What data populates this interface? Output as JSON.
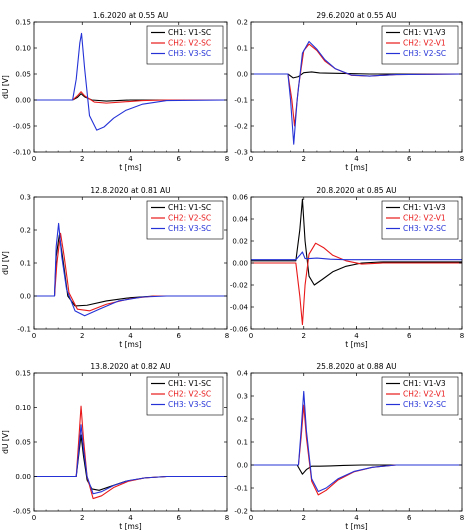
{
  "colors": {
    "CH1": "#000000",
    "CH2": "#e8191a",
    "CH3": "#2432d6"
  },
  "chart_data": [
    {
      "type": "line",
      "title": "1.6.2020 at 0.55 AU",
      "xlabel": "t [ms]",
      "ylabel": "dU [V]",
      "xlim": [
        0,
        8
      ],
      "ylim": [
        -0.1,
        0.15
      ],
      "xticks": [
        "0",
        "2",
        "4",
        "6",
        "8"
      ],
      "yticks": [
        "-0.10",
        "-0.05",
        "0.00",
        "0.05",
        "0.10",
        "0.15"
      ],
      "legend_position": "top-right",
      "legend": [
        "CH1: V1-SC",
        "CH2: V2-SC",
        "CH3: V3-SC"
      ],
      "series": [
        {
          "name": "CH1: V1-SC",
          "x": [
            0,
            1.6,
            1.8,
            1.95,
            2.1,
            2.4,
            3.0,
            4.0,
            8.0
          ],
          "y": [
            0,
            0,
            0.005,
            0.012,
            0.006,
            0,
            -0.002,
            0,
            0
          ]
        },
        {
          "name": "CH2: V2-SC",
          "x": [
            0,
            1.6,
            1.8,
            1.95,
            2.1,
            2.5,
            3.0,
            3.6,
            4.5,
            5.5,
            8.0
          ],
          "y": [
            0,
            0,
            0.008,
            0.016,
            0.008,
            -0.004,
            -0.006,
            -0.004,
            -0.001,
            0,
            0
          ]
        },
        {
          "name": "CH3: V3-SC",
          "x": [
            0,
            1.6,
            1.75,
            1.9,
            1.97,
            2.1,
            2.3,
            2.6,
            2.9,
            3.3,
            3.8,
            4.5,
            5.5,
            8.0
          ],
          "y": [
            0,
            0,
            0.04,
            0.11,
            0.128,
            0.06,
            -0.03,
            -0.058,
            -0.052,
            -0.035,
            -0.02,
            -0.008,
            -0.001,
            0
          ]
        }
      ]
    },
    {
      "type": "line",
      "title": "29.6.2020 at 0.55 AU",
      "xlabel": "t [ms]",
      "ylabel": "",
      "xlim": [
        0,
        8
      ],
      "ylim": [
        -0.3,
        0.2
      ],
      "xticks": [
        "0",
        "2",
        "4",
        "6",
        "8"
      ],
      "yticks": [
        "-0.3",
        "-0.2",
        "-0.1",
        "0.0",
        "0.1",
        "0.2"
      ],
      "legend_position": "top-right",
      "legend": [
        "CH1: V1-V3",
        "CH2: V2-V1",
        "CH3: V2-SC"
      ],
      "series": [
        {
          "name": "CH1: V1-V3",
          "x": [
            0,
            1.4,
            1.6,
            1.8,
            2.0,
            2.3,
            2.6,
            3.0,
            3.5,
            4.5,
            8.0
          ],
          "y": [
            0,
            0,
            -0.015,
            -0.01,
            0.005,
            0.008,
            0.004,
            0.003,
            0.002,
            0,
            0
          ]
        },
        {
          "name": "CH2: V2-V1",
          "x": [
            0,
            1.4,
            1.55,
            1.65,
            1.8,
            2.0,
            2.2,
            2.5,
            2.8,
            3.2,
            3.8,
            4.5,
            5.5,
            8.0
          ],
          "y": [
            0,
            0,
            -0.1,
            -0.2,
            -0.05,
            0.09,
            0.115,
            0.09,
            0.05,
            0.02,
            -0.005,
            -0.008,
            -0.002,
            0
          ]
        },
        {
          "name": "CH3: V2-SC",
          "x": [
            0,
            1.4,
            1.5,
            1.62,
            1.75,
            1.95,
            2.2,
            2.5,
            2.8,
            3.2,
            3.8,
            4.5,
            5.5,
            8.0
          ],
          "y": [
            0,
            0,
            -0.1,
            -0.27,
            -0.1,
            0.08,
            0.125,
            0.095,
            0.055,
            0.02,
            -0.004,
            -0.008,
            -0.002,
            0
          ]
        }
      ]
    },
    {
      "type": "line",
      "title": "12.8.2020 at 0.81 AU",
      "xlabel": "t [ms]",
      "ylabel": "dU [V]",
      "xlim": [
        0,
        8
      ],
      "ylim": [
        -0.1,
        0.3
      ],
      "xticks": [
        "0",
        "2",
        "4",
        "6",
        "8"
      ],
      "yticks": [
        "-0.1",
        "0.0",
        "0.1",
        "0.2",
        "0.3"
      ],
      "legend_position": "top-right",
      "legend": [
        "CH1: V1-SC",
        "CH2: V2-SC",
        "CH3: V3-SC"
      ],
      "series": [
        {
          "name": "CH1: V1-SC",
          "x": [
            0,
            0.85,
            0.92,
            1.05,
            1.2,
            1.4,
            1.7,
            2.2,
            3.0,
            4.0,
            5.0,
            8.0
          ],
          "y": [
            0,
            0,
            0.12,
            0.185,
            0.11,
            0.0,
            -0.03,
            -0.028,
            -0.015,
            -0.005,
            0,
            0
          ]
        },
        {
          "name": "CH2: V2-SC",
          "x": [
            0,
            0.85,
            0.95,
            1.1,
            1.25,
            1.45,
            1.8,
            2.3,
            3.0,
            4.0,
            5.0,
            8.0
          ],
          "y": [
            0,
            0,
            0.1,
            0.19,
            0.12,
            0.01,
            -0.04,
            -0.045,
            -0.025,
            -0.008,
            0,
            0
          ]
        },
        {
          "name": "CH3: V3-SC",
          "x": [
            0,
            0.85,
            0.92,
            1.02,
            1.15,
            1.35,
            1.7,
            2.1,
            2.7,
            3.5,
            4.5,
            5.5,
            8.0
          ],
          "y": [
            0,
            0,
            0.15,
            0.22,
            0.12,
            0.02,
            -0.045,
            -0.06,
            -0.04,
            -0.015,
            -0.003,
            0,
            0
          ]
        }
      ]
    },
    {
      "type": "line",
      "title": "20.8.2020 at 0.85 AU",
      "xlabel": "t [ms]",
      "ylabel": "",
      "xlim": [
        0,
        8
      ],
      "ylim": [
        -0.06,
        0.06
      ],
      "xticks": [
        "0",
        "2",
        "4",
        "6",
        "8"
      ],
      "yticks": [
        "-0.06",
        "-0.04",
        "-0.02",
        "0.00",
        "0.02",
        "0.04",
        "0.06"
      ],
      "legend_position": "top-right",
      "legend": [
        "CH1: V1-V3",
        "CH2: V2-V1",
        "CH3: V2-SC"
      ],
      "series": [
        {
          "name": "CH1: V1-V3",
          "x": [
            0,
            1.7,
            1.85,
            1.95,
            2.05,
            2.2,
            2.4,
            2.7,
            3.1,
            3.6,
            4.2,
            5.0,
            8.0
          ],
          "y": [
            0.002,
            0.002,
            0.03,
            0.058,
            0.02,
            -0.012,
            -0.02,
            -0.015,
            -0.008,
            -0.003,
            0,
            0.001,
            0.001
          ]
        },
        {
          "name": "CH2: V2-V1",
          "x": [
            0,
            1.7,
            1.85,
            1.95,
            2.05,
            2.2,
            2.45,
            2.75,
            3.1,
            3.6,
            4.2,
            5.0,
            8.0
          ],
          "y": [
            0,
            0,
            -0.03,
            -0.056,
            -0.02,
            0.008,
            0.018,
            0.014,
            0.007,
            0.002,
            -0.001,
            0,
            0
          ]
        },
        {
          "name": "CH3: V2-SC",
          "x": [
            0,
            1.7,
            1.85,
            1.95,
            2.05,
            2.2,
            2.5,
            3.0,
            3.6,
            4.5,
            8.0
          ],
          "y": [
            0.003,
            0.003,
            0.007,
            0.01,
            0.004,
            0.004,
            0.0045,
            0.0035,
            0.003,
            0.003,
            0.003
          ]
        }
      ]
    },
    {
      "type": "line",
      "title": "13.8.2020 at 0.82 AU",
      "xlabel": "t [ms]",
      "ylabel": "dU [V]",
      "xlim": [
        0,
        8
      ],
      "ylim": [
        -0.05,
        0.15
      ],
      "xticks": [
        "0",
        "2",
        "4",
        "6",
        "8"
      ],
      "yticks": [
        "-0.05",
        "0.00",
        "0.05",
        "0.10",
        "0.15"
      ],
      "legend_position": "top-right",
      "legend": [
        "CH1: V1-SC",
        "CH2: V2-SC",
        "CH3: V3-SC"
      ],
      "series": [
        {
          "name": "CH1: V1-SC",
          "x": [
            0,
            1.75,
            1.85,
            1.95,
            2.05,
            2.2,
            2.4,
            2.7,
            3.2,
            3.8,
            4.6,
            5.5,
            8.0
          ],
          "y": [
            0,
            0,
            0.03,
            0.06,
            0.03,
            -0.005,
            -0.018,
            -0.02,
            -0.014,
            -0.007,
            -0.002,
            0,
            0
          ]
        },
        {
          "name": "CH2: V2-SC",
          "x": [
            0,
            1.75,
            1.85,
            1.95,
            2.05,
            2.2,
            2.45,
            2.8,
            3.3,
            3.9,
            4.6,
            5.5,
            8.0
          ],
          "y": [
            0,
            0,
            0.05,
            0.102,
            0.055,
            0.0,
            -0.032,
            -0.028,
            -0.016,
            -0.007,
            -0.002,
            0,
            0
          ]
        },
        {
          "name": "CH3: V3-SC",
          "x": [
            0,
            1.75,
            1.85,
            1.95,
            2.05,
            2.2,
            2.45,
            2.8,
            3.3,
            3.9,
            4.6,
            5.5,
            8.0
          ],
          "y": [
            0,
            0,
            0.035,
            0.075,
            0.04,
            0.0,
            -0.025,
            -0.022,
            -0.013,
            -0.006,
            -0.002,
            0,
            0
          ]
        }
      ]
    },
    {
      "type": "line",
      "title": "25.8.2020 at 0.88 AU",
      "xlabel": "t [ms]",
      "ylabel": "",
      "xlim": [
        0,
        8
      ],
      "ylim": [
        -0.2,
        0.4
      ],
      "xticks": [
        "0",
        "2",
        "4",
        "6",
        "8"
      ],
      "yticks": [
        "-0.2",
        "-0.1",
        "0.0",
        "0.1",
        "0.2",
        "0.3",
        "0.4"
      ],
      "legend_position": "top-right",
      "legend": [
        "CH1: V1-V3",
        "CH2: V2-V1",
        "CH3: V2-SC"
      ],
      "series": [
        {
          "name": "CH1: V1-V3",
          "x": [
            0,
            1.75,
            1.85,
            1.95,
            2.1,
            2.3,
            2.6,
            3.0,
            3.5,
            4.2,
            5.0,
            8.0
          ],
          "y": [
            0,
            0,
            -0.02,
            -0.04,
            -0.02,
            -0.005,
            -0.005,
            -0.004,
            -0.002,
            0,
            0,
            0
          ]
        },
        {
          "name": "CH2: V2-V1",
          "x": [
            0,
            1.8,
            1.9,
            2.0,
            2.1,
            2.3,
            2.55,
            2.85,
            3.3,
            3.9,
            4.6,
            5.5,
            8.0
          ],
          "y": [
            0,
            0,
            0.12,
            0.26,
            0.12,
            -0.07,
            -0.13,
            -0.11,
            -0.065,
            -0.03,
            -0.01,
            0,
            0
          ]
        },
        {
          "name": "CH3: V2-SC",
          "x": [
            0,
            1.8,
            1.9,
            2.0,
            2.1,
            2.3,
            2.55,
            2.85,
            3.3,
            3.9,
            4.6,
            5.5,
            8.0
          ],
          "y": [
            0,
            0,
            0.15,
            0.32,
            0.15,
            -0.06,
            -0.115,
            -0.1,
            -0.06,
            -0.028,
            -0.01,
            0,
            0
          ]
        }
      ]
    }
  ]
}
